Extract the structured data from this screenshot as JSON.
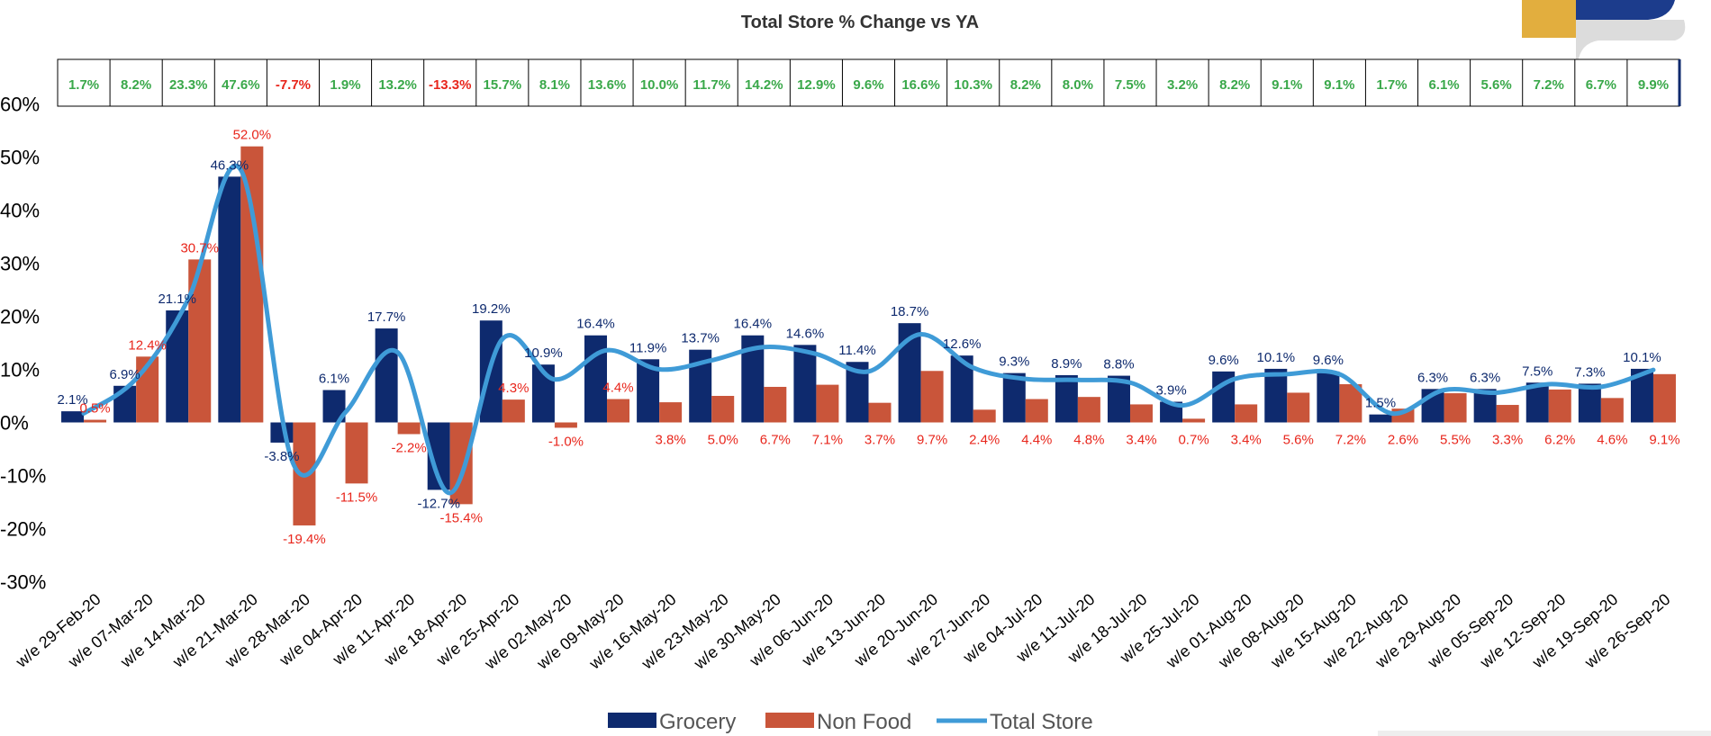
{
  "colors": {
    "grocery": "#0e2a6e",
    "non_food": "#c9553a",
    "total_store": "#3f9bd7",
    "positive": "#3aa84a",
    "negative": "#e8261c",
    "logo_gold": "#e2ae3e",
    "logo_navy": "#1c3c8c"
  },
  "chart_data": {
    "type": "bar",
    "title": "Total Store % Change vs YA",
    "categories": [
      "w/e 29-Feb-20",
      "w/e 07-Mar-20",
      "w/e 14-Mar-20",
      "w/e 21-Mar-20",
      "w/e 28-Mar-20",
      "w/e 04-Apr-20",
      "w/e 11-Apr-20",
      "w/e 18-Apr-20",
      "w/e 25-Apr-20",
      "w/e 02-May-20",
      "w/e 09-May-20",
      "w/e 16-May-20",
      "w/e 23-May-20",
      "w/e 30-May-20",
      "w/e 06-Jun-20",
      "w/e 13-Jun-20",
      "w/e 20-Jun-20",
      "w/e 27-Jun-20",
      "w/e 04-Jul-20",
      "w/e 11-Jul-20",
      "w/e 18-Jul-20",
      "w/e 25-Jul-20",
      "w/e 01-Aug-20",
      "w/e 08-Aug-20",
      "w/e 15-Aug-20",
      "w/e 22-Aug-20",
      "w/e 29-Aug-20",
      "w/e 05-Sep-20",
      "w/e 12-Sep-20",
      "w/e 19-Sep-20",
      "w/e 26-Sep-20"
    ],
    "series": [
      {
        "name": "Grocery",
        "kind": "bar",
        "values": [
          2.1,
          6.9,
          21.1,
          46.3,
          -3.8,
          6.1,
          17.7,
          -12.7,
          19.2,
          10.9,
          16.4,
          11.9,
          13.7,
          16.4,
          14.6,
          11.4,
          18.7,
          12.6,
          9.3,
          8.9,
          8.8,
          3.9,
          9.6,
          10.1,
          9.6,
          1.5,
          6.3,
          6.3,
          7.5,
          7.3,
          10.1
        ],
        "labels": [
          "2.1%",
          "6.9%",
          "21.1%",
          "46.3%",
          "-3.8%",
          "6.1%",
          "17.7%",
          "-12.7%",
          "19.2%",
          "10.9%",
          "16.4%",
          "11.9%",
          "13.7%",
          "16.4%",
          "14.6%",
          "11.4%",
          "18.7%",
          "12.6%",
          "9.3%",
          "8.9%",
          "8.8%",
          "3.9%",
          "9.6%",
          "10.1%",
          "9.6%",
          "1.5%",
          "6.3%",
          "6.3%",
          "7.5%",
          "7.3%",
          "10.1%"
        ]
      },
      {
        "name": "Non Food",
        "kind": "bar",
        "values": [
          0.5,
          12.4,
          30.7,
          52.0,
          -19.4,
          -11.5,
          -2.2,
          -15.4,
          4.3,
          -1.0,
          4.4,
          3.8,
          5.0,
          6.7,
          7.1,
          3.7,
          9.7,
          2.4,
          4.4,
          4.8,
          3.4,
          0.7,
          3.4,
          5.6,
          7.2,
          2.6,
          5.5,
          3.3,
          6.2,
          4.6,
          9.1
        ],
        "labels": [
          "0.5%",
          "12.4%",
          "30.7%",
          "52.0%",
          "-19.4%",
          "-11.5%",
          "-2.2%",
          "-15.4%",
          "4.3%",
          "-1.0%",
          "4.4%",
          "3.8%",
          "5.0%",
          "6.7%",
          "7.1%",
          "3.7%",
          "9.7%",
          "2.4%",
          "4.4%",
          "4.8%",
          "3.4%",
          "0.7%",
          "3.4%",
          "5.6%",
          "7.2%",
          "2.6%",
          "5.5%",
          "3.3%",
          "6.2%",
          "4.6%",
          "9.1%"
        ]
      },
      {
        "name": "Total Store",
        "kind": "line",
        "values": [
          1.7,
          8.2,
          23.3,
          47.6,
          -7.7,
          1.9,
          13.2,
          -13.3,
          15.7,
          8.1,
          13.6,
          10.0,
          11.7,
          14.2,
          12.9,
          9.6,
          16.6,
          10.3,
          8.2,
          8.0,
          7.5,
          3.2,
          8.2,
          9.1,
          9.1,
          1.7,
          6.1,
          5.6,
          7.2,
          6.7,
          9.9
        ],
        "labels": [
          "1.7%",
          "8.2%",
          "23.3%",
          "47.6%",
          "-7.7%",
          "1.9%",
          "13.2%",
          "-13.3%",
          "15.7%",
          "8.1%",
          "13.6%",
          "10.0%",
          "11.7%",
          "14.2%",
          "12.9%",
          "9.6%",
          "16.6%",
          "10.3%",
          "8.2%",
          "8.0%",
          "7.5%",
          "3.2%",
          "8.2%",
          "9.1%",
          "9.1%",
          "1.7%",
          "6.1%",
          "5.6%",
          "7.2%",
          "6.7%",
          "9.9%"
        ]
      }
    ],
    "yticks": [
      "60%",
      "50%",
      "40%",
      "30%",
      "20%",
      "10%",
      "0%",
      "-10%",
      "-20%",
      "-30%"
    ],
    "ylim": [
      -30,
      60
    ],
    "grid": false,
    "legend_position": "bottom"
  }
}
